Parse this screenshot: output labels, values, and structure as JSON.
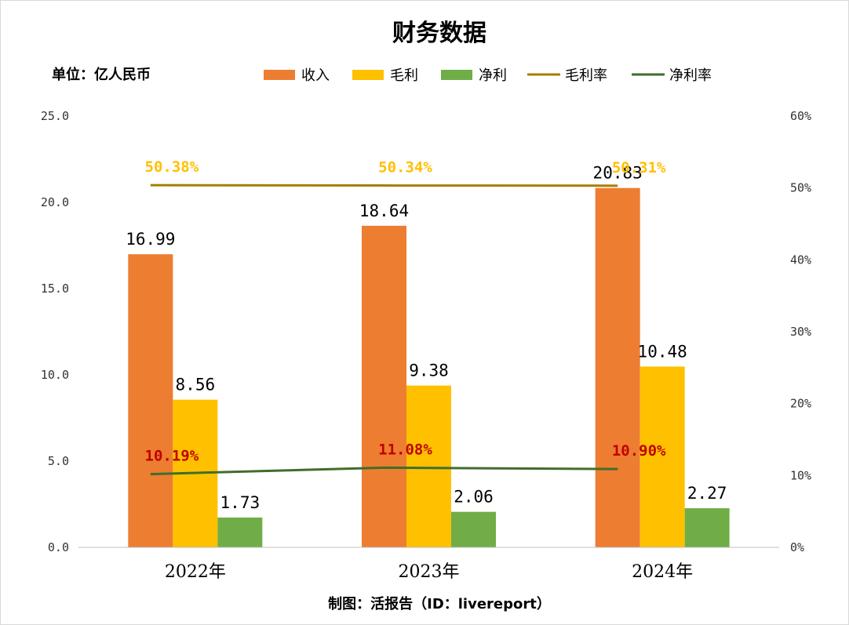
{
  "chart_data": {
    "type": "bar",
    "title": "财务数据",
    "unit_label": "单位：亿人民币",
    "footer": "制图：活报告（ID：livereport）",
    "categories": [
      "2022年",
      "2023年",
      "2024年"
    ],
    "series": [
      {
        "name": "收入",
        "kind": "bar",
        "axis": "left",
        "color": "#ED7D31",
        "values": [
          16.99,
          18.64,
          20.83
        ],
        "labels": [
          "16.99",
          "18.64",
          "20.83"
        ]
      },
      {
        "name": "毛利",
        "kind": "bar",
        "axis": "left",
        "color": "#FFC000",
        "values": [
          8.56,
          9.38,
          10.48
        ],
        "labels": [
          "8.56",
          "9.38",
          "10.48"
        ]
      },
      {
        "name": "净利",
        "kind": "bar",
        "axis": "left",
        "color": "#70AD47",
        "values": [
          1.73,
          2.06,
          2.27
        ],
        "labels": [
          "1.73",
          "2.06",
          "2.27"
        ]
      },
      {
        "name": "毛利率",
        "kind": "line",
        "axis": "right",
        "color": "#A57F00",
        "label_color": "#FFC000",
        "values": [
          50.38,
          50.34,
          50.31
        ],
        "labels": [
          "50.38%",
          "50.34%",
          "50.31%"
        ]
      },
      {
        "name": "净利率",
        "kind": "line",
        "axis": "right",
        "color": "#3F6E2A",
        "label_color": "#C00000",
        "values": [
          10.19,
          11.08,
          10.9
        ],
        "labels": [
          "10.19%",
          "11.08%",
          "10.90%"
        ]
      }
    ],
    "ylim_left": [
      0,
      25
    ],
    "yticks_left": [
      "0.0",
      "5.0",
      "10.0",
      "15.0",
      "20.0",
      "25.0"
    ],
    "ylim_right": [
      0,
      60
    ],
    "yticks_right": [
      "0%",
      "10%",
      "20%",
      "30%",
      "40%",
      "50%",
      "60%"
    ],
    "grid": false,
    "legend_position": "top-center"
  }
}
